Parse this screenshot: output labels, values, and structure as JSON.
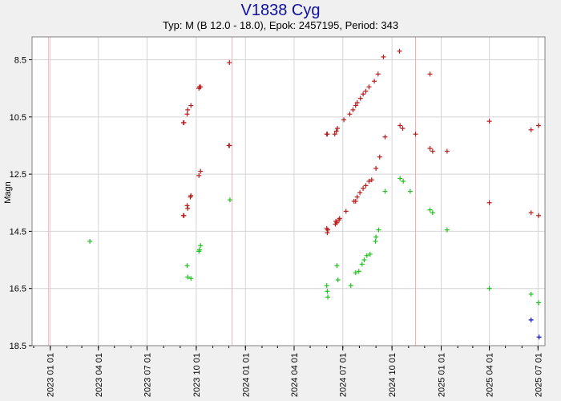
{
  "chart_data": {
    "type": "scatter",
    "title": "V1838 Cyg",
    "subtitle": "Typ: M (B 12.0 - 18.0), Epok: 2457195, Period: 343",
    "ylabel": "Magn",
    "xlabel": "",
    "ylim": [
      18.5,
      7.7
    ],
    "y_inverted": true,
    "xlim": [
      "2022-11-28",
      "2025-07-14"
    ],
    "y_ticks": [
      8.5,
      10.5,
      12.5,
      14.5,
      16.5,
      18.5
    ],
    "y_tick_labels": [
      "8.5",
      "10.5",
      "12.5",
      "14.5",
      "16.5",
      "18.5"
    ],
    "x_ticks": [
      "2023-01-01",
      "2023-04-01",
      "2023-07-01",
      "2023-10-01",
      "2024-01-01",
      "2024-04-01",
      "2024-07-01",
      "2024-10-01",
      "2025-01-01",
      "2025-04-01",
      "2025-07-01"
    ],
    "x_tick_labels": [
      "2023 01 01",
      "2023 04 01",
      "2023 07 01",
      "2023 10 01",
      "2024 01 01",
      "2024 04 01",
      "2024 07 01",
      "2024 10 01",
      "2025 01 01",
      "2025 04 01",
      "2025 07 01"
    ],
    "grid": true,
    "maxima_dates": [
      "2022-12-29",
      "2023-12-07",
      "2024-11-14"
    ],
    "colors": {
      "red_series": "#b81c1c",
      "green_series": "#20c020",
      "blue_series": "#1010c0",
      "maxima_line": "#f4b0b0",
      "grid": "#d4d4d4",
      "plot_bg": "#ffffff",
      "title": "#1010a0"
    },
    "series": [
      {
        "color": "#b81c1c",
        "marker": "plus",
        "points": [
          [
            "2023-09-07",
            10.7
          ],
          [
            "2023-09-08",
            10.7
          ],
          [
            "2023-09-14",
            10.4
          ],
          [
            "2023-09-15",
            10.25
          ],
          [
            "2023-09-21",
            10.1
          ],
          [
            "2023-10-06",
            9.5
          ],
          [
            "2023-10-07",
            9.45
          ],
          [
            "2023-10-09",
            9.45
          ],
          [
            "2023-12-02",
            8.6
          ],
          [
            "2023-12-01",
            11.5
          ],
          [
            "2023-12-02",
            11.5
          ],
          [
            "2023-10-06",
            12.55
          ],
          [
            "2023-10-09",
            12.4
          ],
          [
            "2023-09-20",
            13.3
          ],
          [
            "2023-09-21",
            13.25
          ],
          [
            "2023-09-14",
            13.6
          ],
          [
            "2023-09-15",
            13.7
          ],
          [
            "2023-09-07",
            13.95
          ],
          [
            "2023-09-08",
            13.95
          ],
          [
            "2024-06-01",
            11.1
          ],
          [
            "2024-06-02",
            11.1
          ],
          [
            "2024-06-16",
            11.1
          ],
          [
            "2024-06-19",
            11.0
          ],
          [
            "2024-06-21",
            10.9
          ],
          [
            "2024-07-03",
            10.6
          ],
          [
            "2024-07-14",
            10.4
          ],
          [
            "2024-07-20",
            10.25
          ],
          [
            "2024-07-25",
            10.1
          ],
          [
            "2024-07-28",
            10.0
          ],
          [
            "2024-08-03",
            9.85
          ],
          [
            "2024-08-08",
            9.7
          ],
          [
            "2024-08-13",
            9.6
          ],
          [
            "2024-08-19",
            9.45
          ],
          [
            "2024-08-29",
            9.25
          ],
          [
            "2024-09-05",
            9.0
          ],
          [
            "2024-09-15",
            8.4
          ],
          [
            "2024-10-15",
            8.2
          ],
          [
            "2024-09-18",
            11.2
          ],
          [
            "2024-10-16",
            10.8
          ],
          [
            "2024-10-21",
            10.9
          ],
          [
            "2024-11-14",
            11.1
          ],
          [
            "2024-12-11",
            11.6
          ],
          [
            "2024-12-16",
            11.7
          ],
          [
            "2025-01-12",
            11.7
          ],
          [
            "2024-12-11",
            9.0
          ],
          [
            "2024-06-01",
            14.4
          ],
          [
            "2024-06-02",
            14.55
          ],
          [
            "2024-06-03",
            14.45
          ],
          [
            "2024-06-17",
            14.25
          ],
          [
            "2024-06-18",
            14.15
          ],
          [
            "2024-06-20",
            14.2
          ],
          [
            "2024-06-24",
            14.1
          ],
          [
            "2024-06-25",
            14.05
          ],
          [
            "2024-07-07",
            13.8
          ],
          [
            "2024-07-22",
            13.45
          ],
          [
            "2024-07-25",
            13.45
          ],
          [
            "2024-07-28",
            13.3
          ],
          [
            "2024-08-02",
            13.15
          ],
          [
            "2024-08-08",
            13.0
          ],
          [
            "2024-08-13",
            12.9
          ],
          [
            "2024-08-19",
            12.75
          ],
          [
            "2024-08-24",
            12.7
          ],
          [
            "2024-09-01",
            12.3
          ],
          [
            "2024-09-08",
            11.9
          ],
          [
            "2025-04-01",
            10.65
          ],
          [
            "2025-04-01",
            13.5
          ],
          [
            "2025-06-18",
            10.95
          ],
          [
            "2025-07-02",
            10.8
          ],
          [
            "2025-06-18",
            13.85
          ],
          [
            "2025-07-02",
            13.95
          ]
        ]
      },
      {
        "color": "#20c020",
        "marker": "plus",
        "points": [
          [
            "2023-03-16",
            14.85
          ],
          [
            "2023-09-14",
            15.7
          ],
          [
            "2023-09-15",
            16.1
          ],
          [
            "2023-09-21",
            16.15
          ],
          [
            "2023-10-06",
            15.2
          ],
          [
            "2023-10-07",
            15.15
          ],
          [
            "2023-10-09",
            15.0
          ],
          [
            "2023-12-03",
            13.4
          ],
          [
            "2024-06-01",
            16.4
          ],
          [
            "2024-06-02",
            16.6
          ],
          [
            "2024-06-03",
            16.8
          ],
          [
            "2024-06-20",
            15.7
          ],
          [
            "2024-06-22",
            16.2
          ],
          [
            "2024-07-16",
            16.4
          ],
          [
            "2024-07-25",
            15.95
          ],
          [
            "2024-07-31",
            15.9
          ],
          [
            "2024-08-06",
            15.65
          ],
          [
            "2024-08-10",
            15.5
          ],
          [
            "2024-08-15",
            15.35
          ],
          [
            "2024-08-21",
            15.3
          ],
          [
            "2024-08-31",
            14.85
          ],
          [
            "2024-09-01",
            14.7
          ],
          [
            "2024-09-06",
            14.45
          ],
          [
            "2024-09-18",
            13.1
          ],
          [
            "2024-10-16",
            12.65
          ],
          [
            "2024-10-22",
            12.75
          ],
          [
            "2024-11-04",
            13.1
          ],
          [
            "2024-12-11",
            13.75
          ],
          [
            "2024-12-16",
            13.85
          ],
          [
            "2025-01-12",
            14.45
          ],
          [
            "2025-04-01",
            16.5
          ],
          [
            "2025-06-18",
            16.7
          ],
          [
            "2025-07-02",
            17.0
          ]
        ]
      },
      {
        "color": "#1010c0",
        "marker": "plus",
        "points": [
          [
            "2025-06-18",
            17.6
          ],
          [
            "2025-07-03",
            18.2
          ]
        ]
      }
    ]
  }
}
